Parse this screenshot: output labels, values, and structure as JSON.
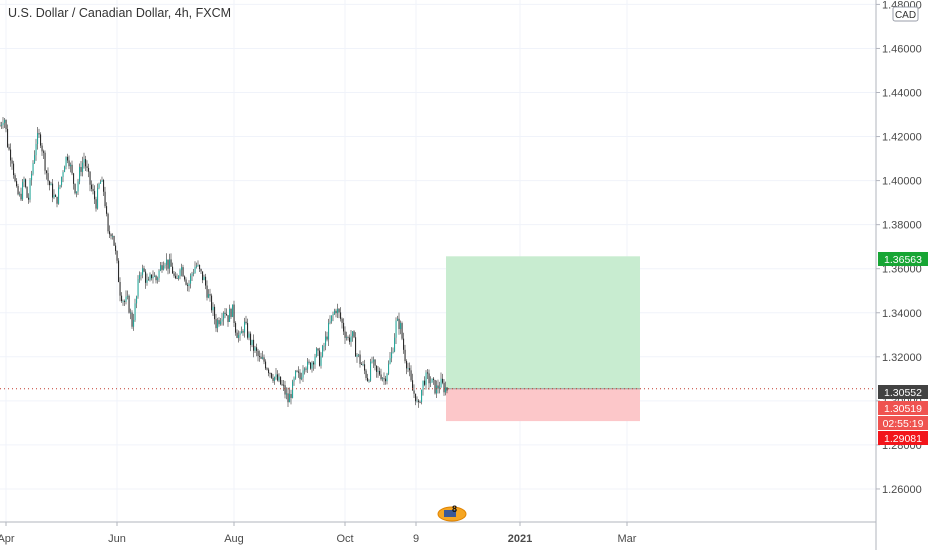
{
  "chart_data": {
    "type": "candlestick",
    "title": "U.S. Dollar / Canadian Dollar, 4h, FXCM",
    "currency_button": "CAD",
    "y_ticks": [
      "1.26000",
      "1.28000",
      "1.30000",
      "1.32000",
      "1.34000",
      "1.36000",
      "1.38000",
      "1.40000",
      "1.42000",
      "1.44000",
      "1.46000",
      "1.48000"
    ],
    "ylim": [
      1.245,
      1.482
    ],
    "x_ticks": [
      "Apr",
      "Jun",
      "Aug",
      "Oct",
      "9",
      "2021",
      "Mar"
    ],
    "x_tick_bold": [
      false,
      false,
      false,
      false,
      false,
      true,
      false
    ],
    "series": {
      "points": [
        [
          0,
          1.425
        ],
        [
          4,
          1.43
        ],
        [
          8,
          1.415
        ],
        [
          12,
          1.41
        ],
        [
          16,
          1.395
        ],
        [
          20,
          1.392
        ],
        [
          24,
          1.4
        ],
        [
          28,
          1.39
        ],
        [
          32,
          1.405
        ],
        [
          36,
          1.418
        ],
        [
          40,
          1.42
        ],
        [
          44,
          1.41
        ],
        [
          48,
          1.4
        ],
        [
          52,
          1.395
        ],
        [
          56,
          1.39
        ],
        [
          60,
          1.398
        ],
        [
          64,
          1.408
        ],
        [
          68,
          1.412
        ],
        [
          72,
          1.402
        ],
        [
          76,
          1.395
        ],
        [
          80,
          1.405
        ],
        [
          84,
          1.41
        ],
        [
          88,
          1.402
        ],
        [
          92,
          1.395
        ],
        [
          96,
          1.39
        ],
        [
          100,
          1.4
        ],
        [
          104,
          1.395
        ],
        [
          106,
          1.385
        ],
        [
          108,
          1.375
        ],
        [
          112,
          1.378
        ],
        [
          116,
          1.365
        ],
        [
          120,
          1.35
        ],
        [
          124,
          1.345
        ],
        [
          128,
          1.345
        ],
        [
          132,
          1.335
        ],
        [
          136,
          1.345
        ],
        [
          140,
          1.36
        ],
        [
          144,
          1.358
        ],
        [
          148,
          1.352
        ],
        [
          152,
          1.358
        ],
        [
          156,
          1.355
        ],
        [
          160,
          1.36
        ],
        [
          164,
          1.365
        ],
        [
          168,
          1.362
        ],
        [
          172,
          1.36
        ],
        [
          176,
          1.352
        ],
        [
          180,
          1.362
        ],
        [
          184,
          1.358
        ],
        [
          188,
          1.352
        ],
        [
          192,
          1.358
        ],
        [
          196,
          1.362
        ],
        [
          200,
          1.358
        ],
        [
          204,
          1.355
        ],
        [
          208,
          1.348
        ],
        [
          212,
          1.342
        ],
        [
          216,
          1.335
        ],
        [
          220,
          1.338
        ],
        [
          224,
          1.342
        ],
        [
          228,
          1.338
        ],
        [
          232,
          1.342
        ],
        [
          236,
          1.332
        ],
        [
          240,
          1.328
        ],
        [
          244,
          1.335
        ],
        [
          248,
          1.33
        ],
        [
          252,
          1.325
        ],
        [
          256,
          1.322
        ],
        [
          260,
          1.318
        ],
        [
          264,
          1.318
        ],
        [
          268,
          1.315
        ],
        [
          272,
          1.312
        ],
        [
          276,
          1.31
        ],
        [
          280,
          1.308
        ],
        [
          284,
          1.305
        ],
        [
          288,
          1.3
        ],
        [
          292,
          1.305
        ],
        [
          296,
          1.312
        ],
        [
          300,
          1.31
        ],
        [
          304,
          1.318
        ],
        [
          308,
          1.315
        ],
        [
          312,
          1.318
        ],
        [
          316,
          1.322
        ],
        [
          320,
          1.318
        ],
        [
          324,
          1.325
        ],
        [
          328,
          1.332
        ],
        [
          332,
          1.338
        ],
        [
          336,
          1.342
        ],
        [
          340,
          1.338
        ],
        [
          344,
          1.332
        ],
        [
          348,
          1.328
        ],
        [
          352,
          1.33
        ],
        [
          356,
          1.322
        ],
        [
          360,
          1.318
        ],
        [
          364,
          1.314
        ],
        [
          368,
          1.31
        ],
        [
          372,
          1.318
        ],
        [
          376,
          1.312
        ],
        [
          380,
          1.313
        ],
        [
          384,
          1.31
        ],
        [
          388,
          1.315
        ],
        [
          392,
          1.322
        ],
        [
          396,
          1.335
        ],
        [
          400,
          1.335
        ],
        [
          404,
          1.322
        ],
        [
          408,
          1.315
        ],
        [
          412,
          1.305
        ],
        [
          416,
          1.302
        ],
        [
          418,
          1.295
        ],
        [
          420,
          1.302
        ],
        [
          424,
          1.31
        ],
        [
          428,
          1.31
        ],
        [
          432,
          1.308
        ],
        [
          436,
          1.305
        ],
        [
          440,
          1.308
        ],
        [
          444,
          1.306
        ],
        [
          447,
          1.3055
        ]
      ],
      "up_color": "#26a69a",
      "down_color": "#ef5350",
      "body_color": "#2b2b2b"
    },
    "position": {
      "entry": 1.30552,
      "target": 1.36563,
      "stop": 1.29081,
      "profit_color": "#c8ecd0",
      "loss_color": "#fcc7c9"
    },
    "price_tags": [
      {
        "label": "1.36563",
        "color": "#17a534"
      },
      {
        "label": "1.30552",
        "color": "#424242"
      },
      {
        "label": "1.30519",
        "color": "#ef5350"
      },
      {
        "label": "02:55:19",
        "color": "#ef5350"
      },
      {
        "label": "1.29081",
        "color": "#f2151b"
      }
    ],
    "events_badge": "8",
    "grid": true
  }
}
